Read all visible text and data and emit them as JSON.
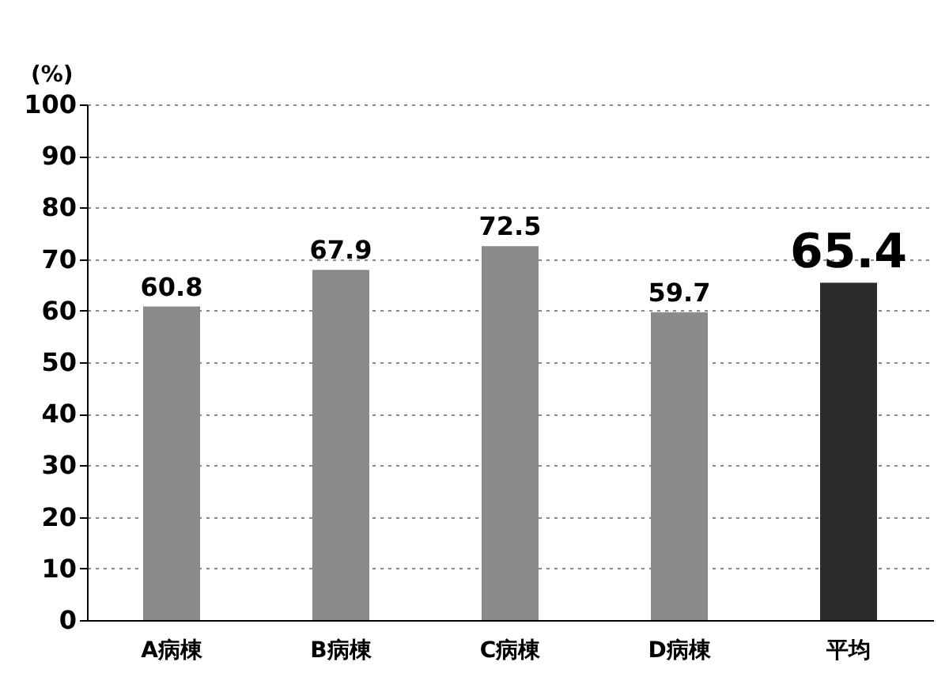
{
  "chart_data": {
    "type": "bar",
    "ylabel": "(%)",
    "categories": [
      "A病棟",
      "B病棟",
      "C病棟",
      "D病棟",
      "平均"
    ],
    "values": [
      60.8,
      67.9,
      72.5,
      59.7,
      65.4
    ],
    "colors": [
      "#8a8a8a",
      "#8a8a8a",
      "#8a8a8a",
      "#8a8a8a",
      "#2b2b2b"
    ],
    "ylim": [
      0,
      100
    ],
    "yticks": [
      0,
      10,
      20,
      30,
      40,
      50,
      60,
      70,
      80,
      90,
      100
    ],
    "grid": "y",
    "data_labels": true
  }
}
